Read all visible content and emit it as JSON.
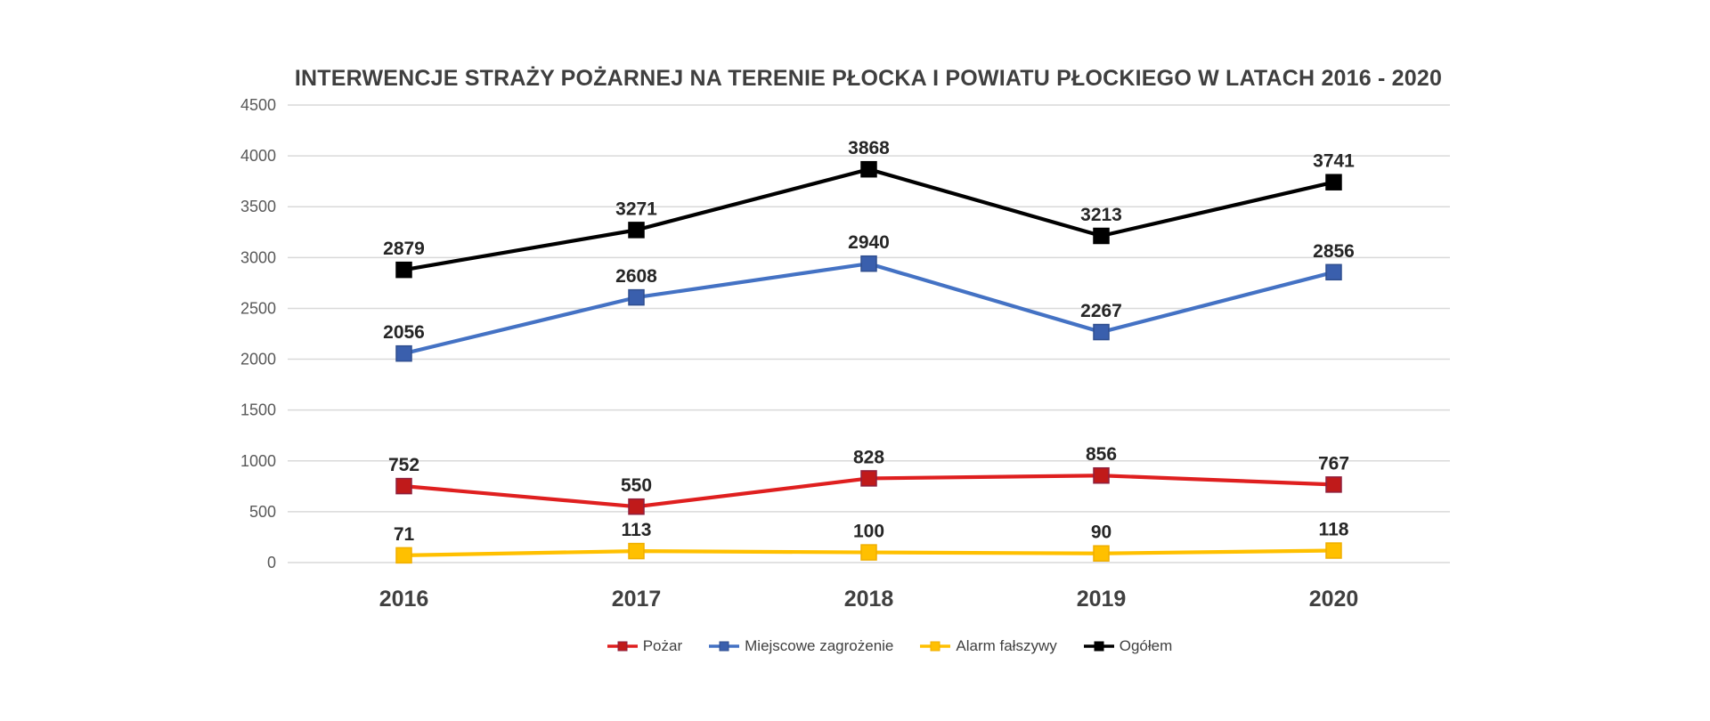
{
  "title": "INTERWENCJE STRAŻY POŻARNEJ NA TERENIE PŁOCKA I POWIATU PŁOCKIEGO W LATACH 2016 - 2020",
  "chart_data": {
    "type": "line",
    "categories": [
      "2016",
      "2017",
      "2018",
      "2019",
      "2020"
    ],
    "series": [
      {
        "name": "Pożar",
        "color": "#df1f1f",
        "marker_fill": "#c01a1a",
        "marker_stroke": "#8e1f3c",
        "values": [
          752,
          550,
          828,
          856,
          767
        ]
      },
      {
        "name": "Miejscowe zagrożenie",
        "color": "#4472c4",
        "marker_fill": "#3a5fad",
        "marker_stroke": "#2f4e8f",
        "values": [
          2056,
          2608,
          2940,
          2267,
          2856
        ]
      },
      {
        "name": "Alarm fałszywy",
        "color": "#ffc000",
        "marker_fill": "#ffc000",
        "marker_stroke": "#efae00",
        "values": [
          71,
          113,
          100,
          90,
          118
        ]
      },
      {
        "name": "Ogółem",
        "color": "#000000",
        "marker_fill": "#000000",
        "marker_stroke": "#000000",
        "values": [
          2879,
          3271,
          3868,
          3213,
          3741
        ]
      }
    ],
    "ylim": [
      0,
      4500
    ],
    "ytick_step": 500,
    "grid": true,
    "legend_position": "bottom",
    "xlabel": "",
    "ylabel": ""
  },
  "colors": {
    "background": "#ffffff",
    "grid": "#d9d9d9",
    "axis_tick_text": "#595959",
    "category_text": "#404040",
    "data_label_text": "#262626",
    "title_text": "#3f3f3f",
    "legend_text": "#404040"
  }
}
